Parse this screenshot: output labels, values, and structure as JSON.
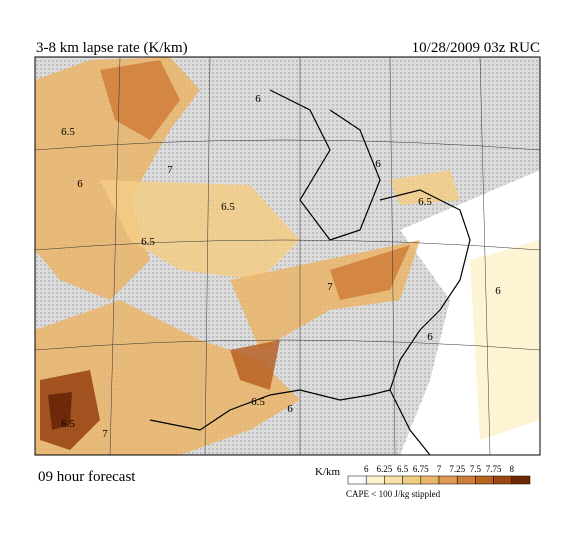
{
  "header": {
    "title": "3-8 km lapse rate (K/km)",
    "valid": "10/28/2009  03z  RUC"
  },
  "map": {
    "contour_labels": [
      "6.5",
      "6",
      "7",
      "6.5",
      "6.5",
      "7",
      "6.5",
      "6",
      "6",
      "6",
      "6.5",
      "7",
      "6.5",
      "6",
      "6"
    ]
  },
  "footer": {
    "forecast": "09 hour forecast",
    "note": "CAPE < 100 J/kg stippled"
  },
  "legend": {
    "unit": "K/km",
    "levels": [
      6,
      6.25,
      6.5,
      6.75,
      7,
      7.25,
      7.5,
      7.75,
      8
    ],
    "colors": [
      "#ffffff",
      "#fdf3cf",
      "#f9e2a8",
      "#f3cd86",
      "#eab56a",
      "#df9a4f",
      "#cf7e38",
      "#b86224",
      "#9a4714",
      "#6e2a08"
    ]
  }
}
